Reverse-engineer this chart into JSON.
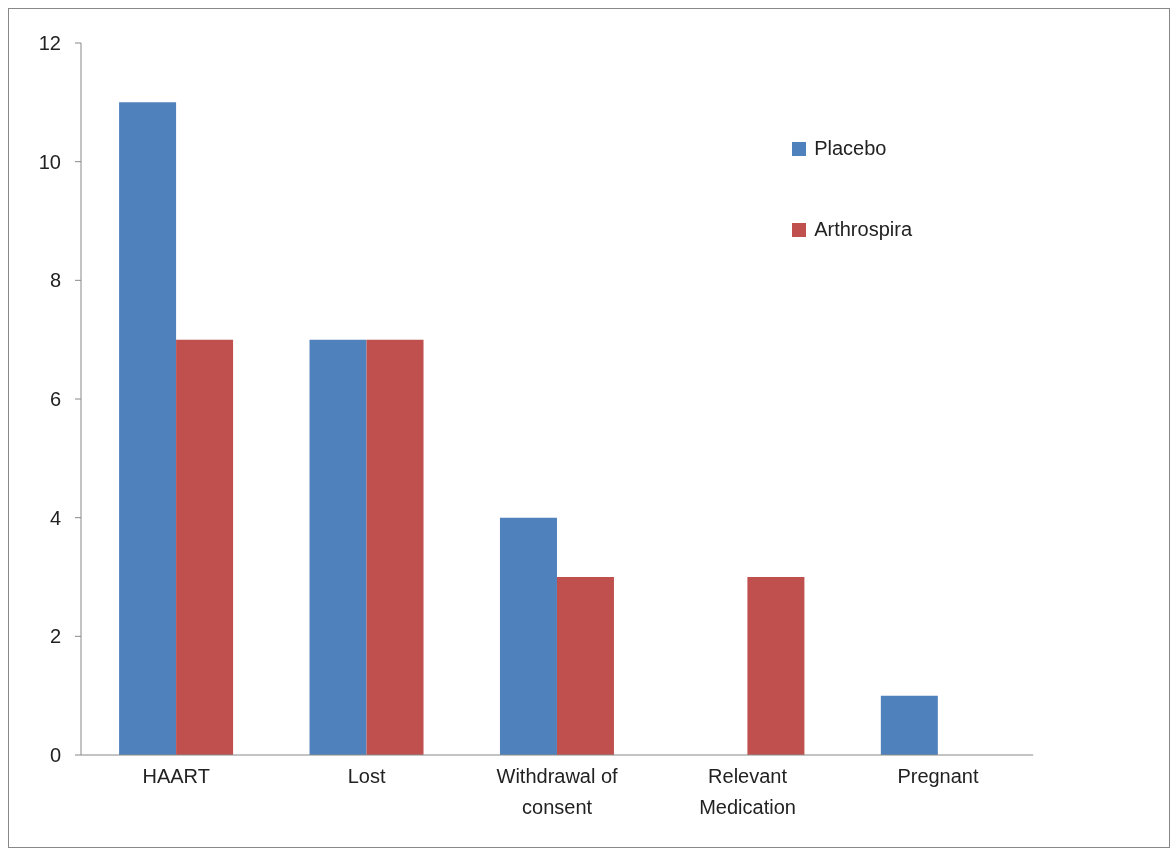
{
  "chart_data": {
    "type": "bar",
    "categories": [
      "HAART",
      "Lost",
      "Withdrawal of consent",
      "Relevant Medication",
      "Pregnant"
    ],
    "series": [
      {
        "name": "Placebo",
        "color": "#4f81bd",
        "values": [
          11,
          7,
          4,
          0,
          1
        ]
      },
      {
        "name": "Arthrospira",
        "color": "#c0504d",
        "values": [
          7,
          7,
          3,
          3,
          0
        ]
      }
    ],
    "ylim": [
      0,
      12
    ],
    "yticks": [
      0,
      2,
      4,
      6,
      8,
      10,
      12
    ],
    "grid": false,
    "legend": "top right"
  }
}
